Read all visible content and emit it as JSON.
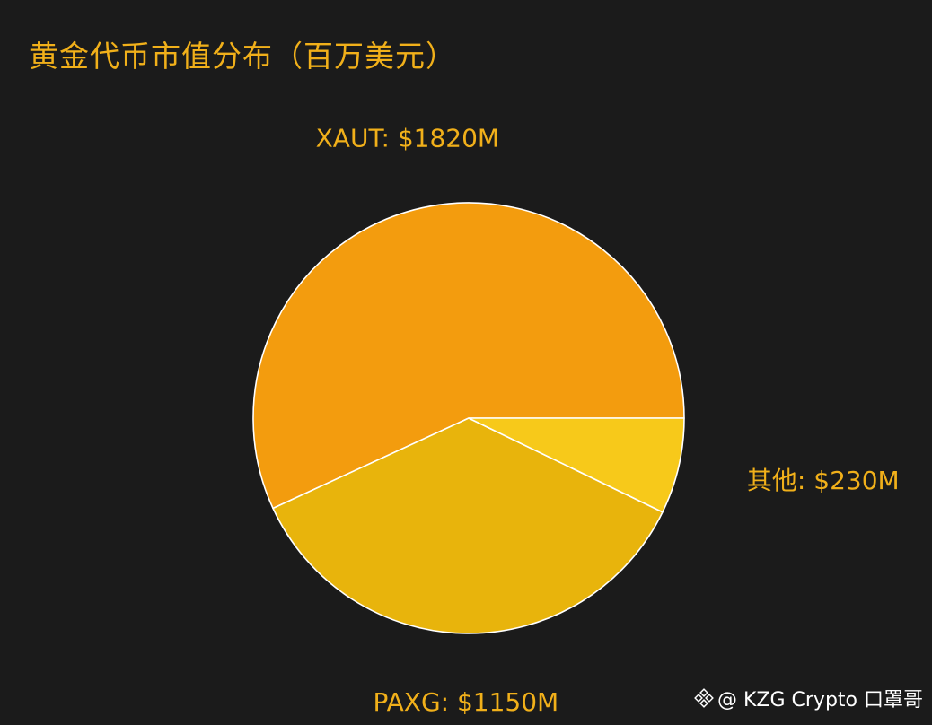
{
  "chart_data": {
    "type": "pie",
    "title": "黄金代币市值分布（百万美元）",
    "slices": [
      {
        "label": "XAUT",
        "value": 1820,
        "display": "XAUT: $1820M",
        "color": "#f39c0e"
      },
      {
        "label": "PAXG",
        "value": 1150,
        "display": "PAXG: $1150M",
        "color": "#e8b40c"
      },
      {
        "label": "其他",
        "value": 230,
        "display": "其他: $230M",
        "color": "#f7c91a"
      }
    ],
    "start_angle_deg": 0,
    "direction": "counterclockwise",
    "label_color": "#f1b01a",
    "edge_color": "#ffffff",
    "background": "#1b1b1b"
  },
  "watermark": {
    "icon": "binance-diamond-icon",
    "text": "@ KZG Crypto 口罩哥"
  }
}
